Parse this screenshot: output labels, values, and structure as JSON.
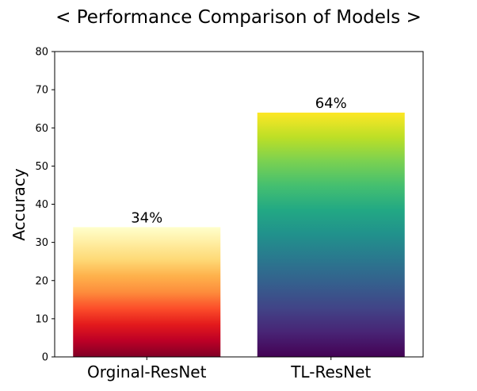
{
  "chart_data": {
    "type": "bar",
    "title": "< Performance Comparison of Models >",
    "ylabel": "Accuracy",
    "xlabel": "",
    "categories": [
      "Orginal-ResNet",
      "TL-ResNet"
    ],
    "values": [
      34,
      64
    ],
    "value_labels": [
      "34%",
      "64%"
    ],
    "ylim": [
      0,
      80
    ],
    "yticks": [
      0,
      10,
      20,
      30,
      40,
      50,
      60,
      70,
      80
    ],
    "grid": false,
    "legend": "none",
    "bar_fills": [
      {
        "colormap": "YlOrRd",
        "gradient": "vertical",
        "bottom": "#800026",
        "top": "#ffffcc"
      },
      {
        "colormap": "viridis",
        "gradient": "vertical",
        "bottom": "#440154",
        "top": "#fde725"
      }
    ]
  }
}
